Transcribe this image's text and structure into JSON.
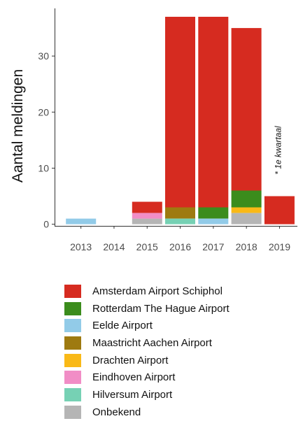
{
  "chart_data": {
    "type": "bar",
    "stacked": true,
    "categories": [
      "2013",
      "2014",
      "2015",
      "2016",
      "2017",
      "2018",
      "2019"
    ],
    "series": [
      {
        "name": "Onbekend",
        "color": "#b5b5b5",
        "values": [
          0,
          0,
          1,
          0,
          0,
          2,
          0
        ]
      },
      {
        "name": "Hilversum Airport",
        "color": "#76d1b4",
        "values": [
          0,
          0,
          0,
          1,
          0,
          0,
          0
        ]
      },
      {
        "name": "Eindhoven Airport",
        "color": "#f18dc6",
        "values": [
          0,
          0,
          1,
          0,
          0,
          0,
          0
        ]
      },
      {
        "name": "Drachten Airport",
        "color": "#f9b917",
        "values": [
          0,
          0,
          0,
          0,
          0,
          1,
          0
        ]
      },
      {
        "name": "Maastricht Aachen Airport",
        "color": "#9e7a10",
        "values": [
          0,
          0,
          0,
          2,
          0,
          0,
          0
        ]
      },
      {
        "name": "Eelde Airport",
        "color": "#92cbe8",
        "values": [
          1,
          0,
          0,
          0,
          1,
          0,
          0
        ]
      },
      {
        "name": "Rotterdam The Hague Airport",
        "color": "#3b8c1c",
        "values": [
          0,
          0,
          0,
          0,
          2,
          3,
          0
        ]
      },
      {
        "name": "Amsterdam Airport Schiphol",
        "color": "#d62b20",
        "values": [
          0,
          0,
          2,
          34,
          34,
          29,
          5
        ]
      }
    ],
    "legend_order": [
      "Amsterdam Airport Schiphol",
      "Rotterdam The Hague Airport",
      "Eelde Airport",
      "Maastricht Aachen Airport",
      "Drachten Airport",
      "Eindhoven Airport",
      "Hilversum Airport",
      "Onbekend"
    ],
    "ylabel": "Aantal meldingen",
    "xlabel": "",
    "ylim": [
      -0.3,
      38.5
    ],
    "yticks": [
      0,
      10,
      20,
      30
    ],
    "grid": false,
    "legend_position": "bottom",
    "annotation": {
      "text": "* 1e kwartaal",
      "category": "2019"
    }
  }
}
